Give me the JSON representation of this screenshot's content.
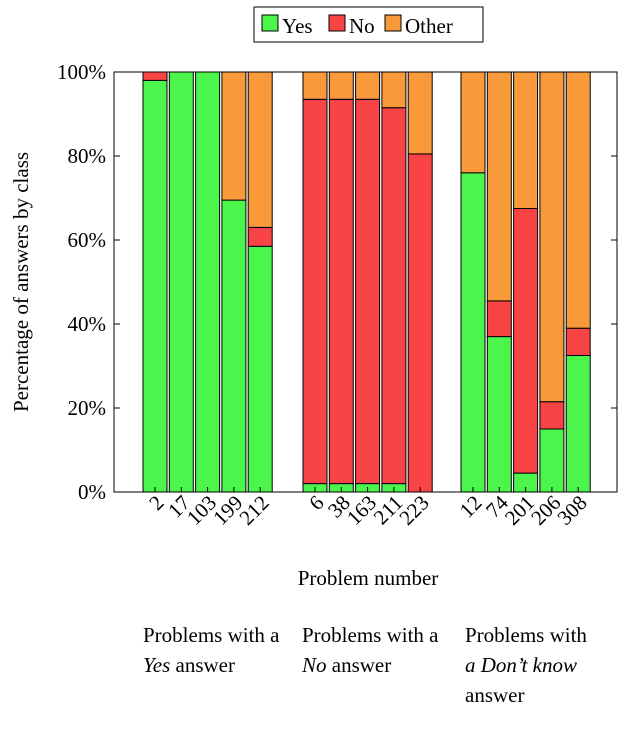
{
  "chart_data": {
    "type": "bar",
    "stacked": true,
    "ylabel": "Percentage of answers by class",
    "xlabel": "Problem number",
    "ylim": [
      0,
      100
    ],
    "y_ticks": [
      "0%",
      "20%",
      "40%",
      "60%",
      "80%",
      "100%"
    ],
    "y_tick_values": [
      0,
      20,
      40,
      60,
      80,
      100
    ],
    "legend": {
      "position": "top-center",
      "entries": [
        "Yes",
        "No",
        "Other"
      ]
    },
    "categories": [
      "2",
      "17",
      "103",
      "199",
      "212",
      "6",
      "38",
      "163",
      "211",
      "223",
      "12",
      "74",
      "201",
      "206",
      "308"
    ],
    "groups": [
      {
        "categories": [
          "2",
          "17",
          "103",
          "199",
          "212"
        ]
      },
      {
        "categories": [
          "6",
          "38",
          "163",
          "211",
          "223"
        ]
      },
      {
        "categories": [
          "12",
          "74",
          "201",
          "206",
          "308"
        ]
      }
    ],
    "series": [
      {
        "name": "Yes",
        "color": "#4cf54c",
        "values": [
          98,
          100,
          100,
          69.5,
          58.5,
          2,
          2,
          2,
          2,
          0,
          76,
          37,
          4.5,
          15,
          32.5
        ]
      },
      {
        "name": "No",
        "color": "#f84444",
        "values": [
          2,
          0,
          0,
          0,
          4.5,
          91.5,
          91.5,
          91.5,
          89.5,
          80.5,
          0,
          8.5,
          63,
          6.5,
          6.5
        ]
      },
      {
        "name": "Other",
        "color": "#f99a3a",
        "values": [
          0,
          0,
          0,
          30.5,
          37,
          6.5,
          6.5,
          6.5,
          8.5,
          19.5,
          24,
          54.5,
          32.5,
          78.5,
          61
        ]
      }
    ]
  },
  "captions": [
    {
      "pre": "Problems with a ",
      "em": "Yes",
      "post": " answer"
    },
    {
      "pre": "Problems with a ",
      "em": "No",
      "post": " answer"
    },
    {
      "pre": "Problems with ",
      "em": "a Don’t know",
      "post": " answer"
    }
  ]
}
